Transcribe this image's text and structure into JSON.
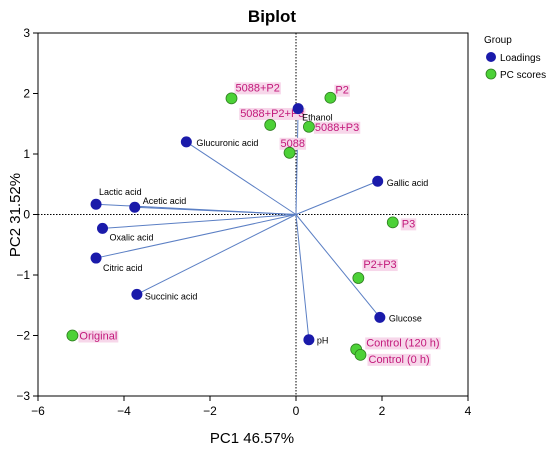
{
  "chart_data": {
    "type": "scatter",
    "title": "Biplot",
    "xlabel": "PC1 46.57%",
    "ylabel": "PC2 31.52%",
    "xlim": [
      -6,
      4
    ],
    "ylim": [
      -3,
      3
    ],
    "x_ticks": [
      "−6",
      "−4",
      "−2",
      "0",
      "2",
      "4"
    ],
    "y_ticks": [
      "−3",
      "−2",
      "−1",
      "0",
      "1",
      "2",
      "3"
    ],
    "x_tick_values": [
      -6,
      -4,
      -2,
      0,
      2,
      4
    ],
    "y_tick_values": [
      -3,
      -2,
      -1,
      0,
      1,
      2,
      3
    ],
    "grid": false,
    "reference_lines": "dotted lines at x=0 and y=0",
    "legend": {
      "title": "Group",
      "placement": "right",
      "entries": [
        {
          "name": "Loadings",
          "color": "#1a1aaa"
        },
        {
          "name": "PC scores",
          "color": "#4cd137"
        }
      ]
    },
    "colors": {
      "loading_fill": "#1a1aaa",
      "score_fill": "#4cd137",
      "score_stroke": "#2e7d1f",
      "vector_line": "#5b7fc4",
      "score_label_text": "#c2187a",
      "score_label_bg": "#f7d7ea"
    },
    "series": [
      {
        "name": "Loadings",
        "points": [
          {
            "label": "Ethanol",
            "x": 0.05,
            "y": 1.75
          },
          {
            "label": "Glucuronic acid",
            "x": -2.55,
            "y": 1.2
          },
          {
            "label": "Gallic acid",
            "x": 1.9,
            "y": 0.55
          },
          {
            "label": "Lactic acid",
            "x": -4.65,
            "y": 0.17
          },
          {
            "label": "Acetic acid",
            "x": -3.75,
            "y": 0.12
          },
          {
            "label": "Oxalic acid",
            "x": -4.5,
            "y": -0.23
          },
          {
            "label": "Citric acid",
            "x": -4.65,
            "y": -0.72
          },
          {
            "label": "Succinic acid",
            "x": -3.7,
            "y": -1.32
          },
          {
            "label": "Glucose",
            "x": 1.95,
            "y": -1.7
          },
          {
            "label": "pH",
            "x": 0.3,
            "y": -2.07
          }
        ]
      },
      {
        "name": "PC scores",
        "points": [
          {
            "label": "5088+P2",
            "x": -1.5,
            "y": 1.92
          },
          {
            "label": "P2",
            "x": 0.8,
            "y": 1.93
          },
          {
            "label": "5088+P2+P3",
            "x": -0.6,
            "y": 1.48
          },
          {
            "label": "5088+P3",
            "x": 0.3,
            "y": 1.45
          },
          {
            "label": "5088",
            "x": -0.15,
            "y": 1.02
          },
          {
            "label": "P3",
            "x": 2.25,
            "y": -0.13
          },
          {
            "label": "P2+P3",
            "x": 1.45,
            "y": -1.05
          },
          {
            "label": "Original",
            "x": -5.2,
            "y": -2.0
          },
          {
            "label": "Control (120 h)",
            "x": 1.4,
            "y": -2.23
          },
          {
            "label": "Control (0 h)",
            "x": 1.5,
            "y": -2.32
          }
        ]
      }
    ]
  }
}
